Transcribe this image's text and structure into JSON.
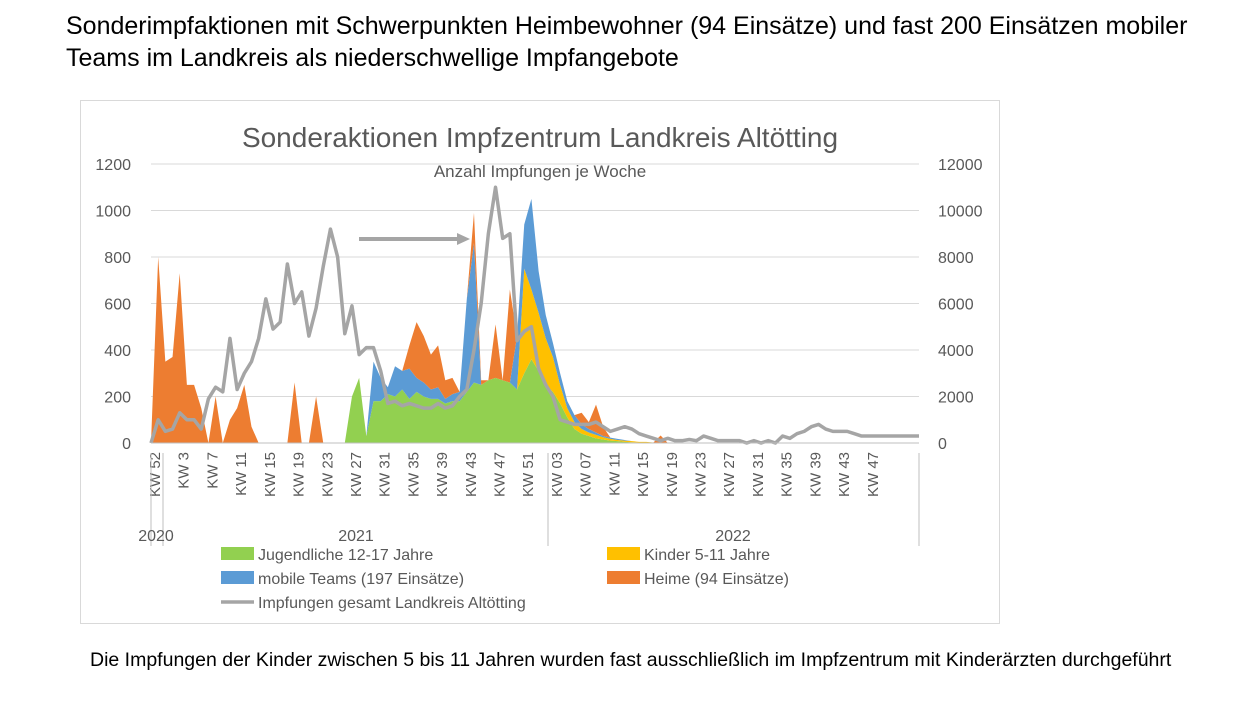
{
  "slide": {
    "title": "Sonderimpfaktionen mit Schwerpunkten Heimbewohner (94 Einsätze) und fast 200 Einsätzen mobiler Teams im Landkreis als niederschwellige Impfangebote",
    "footnote": "Die Impfungen der Kinder zwischen 5 bis 11 Jahren wurden fast ausschließlich im Impfzentrum mit Kinderärzten durchgeführt"
  },
  "chart_data": {
    "type": "area",
    "title": "Sonderaktionen Impfzentrum Landkreis Altötting",
    "subtitle": "Anzahl Impfungen je Woche",
    "stacked": true,
    "y_left_lim": [
      0,
      1200
    ],
    "y_left_ticks": [
      "0",
      "200",
      "400",
      "600",
      "800",
      "1000",
      "1200"
    ],
    "y_right_lim": [
      0,
      12000
    ],
    "y_right_ticks": [
      "0",
      "2000",
      "4000",
      "6000",
      "8000",
      "10000",
      "12000"
    ],
    "grid": "horizontal",
    "legend_position": "bottom",
    "week_tick_labels": [
      "KW 52",
      "KW 3",
      "KW 7",
      "KW 11",
      "KW 15",
      "KW 19",
      "KW 23",
      "KW 27",
      "KW 31",
      "KW 35",
      "KW 39",
      "KW 43",
      "KW 47",
      "KW 51",
      "KW 03",
      "KW 07",
      "KW 11",
      "KW 15",
      "KW 19",
      "KW 23",
      "KW 27",
      "KW 31",
      "KW 35",
      "KW 39",
      "KW 43",
      "KW 47"
    ],
    "year_labels": [
      "2020",
      "2021",
      "2022"
    ],
    "colors": {
      "Jugendliche": "#92d050",
      "Kinder": "#ffc000",
      "mobile": "#5b9bd5",
      "Heime": "#ed7d31",
      "gesamt": "#a5a5a5",
      "grid": "#d9d9d9",
      "axis_text": "#595959"
    },
    "series": [
      {
        "name": "Jugendliche 12-17 Jahre",
        "axis": "left",
        "values": [
          0,
          0,
          0,
          0,
          0,
          0,
          0,
          0,
          0,
          0,
          0,
          0,
          0,
          0,
          0,
          0,
          0,
          0,
          0,
          0,
          0,
          0,
          0,
          0,
          0,
          0,
          0,
          0,
          200,
          280,
          30,
          180,
          180,
          210,
          200,
          230,
          190,
          220,
          200,
          190,
          190,
          170,
          180,
          180,
          220,
          260,
          250,
          270,
          280,
          270,
          260,
          230,
          300,
          360,
          310,
          250,
          220,
          170,
          110,
          60,
          40,
          30,
          20,
          15,
          10,
          8,
          5,
          3,
          2,
          2,
          0,
          0,
          0,
          0,
          0,
          0,
          0,
          0,
          0,
          0,
          0,
          0,
          0,
          0,
          0,
          0,
          0,
          0,
          0,
          0,
          0,
          0,
          0,
          0,
          0,
          0,
          0,
          0,
          0,
          0,
          0,
          0,
          0,
          0,
          0,
          0,
          0,
          0
        ]
      },
      {
        "name": "Kinder 5-11 Jahre",
        "axis": "left",
        "values": [
          0,
          0,
          0,
          0,
          0,
          0,
          0,
          0,
          0,
          0,
          0,
          0,
          0,
          0,
          0,
          0,
          0,
          0,
          0,
          0,
          0,
          0,
          0,
          0,
          0,
          0,
          0,
          0,
          0,
          0,
          0,
          0,
          0,
          0,
          0,
          0,
          0,
          0,
          0,
          0,
          0,
          0,
          0,
          0,
          0,
          0,
          0,
          0,
          0,
          0,
          0,
          0,
          450,
          300,
          250,
          200,
          150,
          80,
          40,
          30,
          20,
          15,
          15,
          10,
          8,
          5,
          5,
          5,
          3,
          3,
          2,
          2,
          0,
          0,
          0,
          0,
          0,
          0,
          0,
          0,
          0,
          0,
          0,
          0,
          0,
          0,
          0,
          0,
          0,
          0,
          0,
          0,
          0,
          0,
          0,
          0,
          0,
          0,
          0,
          0,
          0,
          0,
          0,
          0,
          0,
          0,
          0,
          0,
          0
        ]
      },
      {
        "name": "mobile Teams (197 Einsätze)",
        "axis": "left",
        "values": [
          0,
          0,
          0,
          0,
          0,
          0,
          0,
          0,
          0,
          0,
          0,
          0,
          0,
          0,
          0,
          0,
          0,
          0,
          0,
          0,
          0,
          0,
          0,
          0,
          0,
          0,
          0,
          0,
          0,
          0,
          0,
          170,
          100,
          30,
          130,
          80,
          130,
          60,
          60,
          40,
          50,
          20,
          30,
          40,
          400,
          600,
          0,
          0,
          0,
          0,
          0,
          230,
          190,
          390,
          180,
          100,
          60,
          50,
          30,
          30,
          20,
          15,
          10,
          5,
          5,
          5,
          3,
          0,
          0,
          0,
          0,
          0,
          0,
          0,
          0,
          0,
          0,
          0,
          0,
          0,
          0,
          0,
          0,
          0,
          0,
          0,
          0,
          0,
          0,
          0,
          0,
          0,
          0,
          0,
          0,
          0,
          0,
          0,
          0,
          0,
          0,
          0,
          0,
          0,
          0,
          0,
          0,
          0
        ]
      },
      {
        "name": "Heime (94 Einsätze)",
        "axis": "left",
        "values": [
          0,
          800,
          350,
          370,
          730,
          250,
          250,
          150,
          0,
          200,
          0,
          100,
          150,
          250,
          70,
          0,
          0,
          0,
          0,
          0,
          260,
          0,
          0,
          200,
          0,
          0,
          0,
          0,
          0,
          0,
          0,
          0,
          0,
          0,
          0,
          0,
          100,
          240,
          200,
          150,
          180,
          80,
          70,
          0,
          0,
          130,
          20,
          0,
          230,
          0,
          400,
          0,
          0,
          0,
          0,
          0,
          0,
          0,
          0,
          0,
          50,
          30,
          120,
          40,
          0,
          0,
          0,
          0,
          0,
          0,
          0,
          30,
          0,
          0,
          0,
          0,
          0,
          0,
          0,
          0,
          0,
          0,
          0,
          0,
          0,
          0,
          0,
          0,
          0,
          0,
          0,
          0,
          0,
          0,
          0,
          0,
          0,
          0,
          0,
          0,
          0,
          0,
          0,
          0,
          0,
          0,
          0,
          0
        ]
      },
      {
        "name": "Impfungen gesamt Landkreis Altötting",
        "axis": "right",
        "type": "line",
        "values": [
          0,
          1000,
          500,
          600,
          1300,
          1000,
          1000,
          600,
          1900,
          2400,
          2200,
          4500,
          2300,
          3000,
          3500,
          4500,
          6200,
          4900,
          5200,
          7700,
          6000,
          6500,
          4600,
          5800,
          7600,
          9200,
          8000,
          4700,
          5900,
          3800,
          4100,
          4100,
          3100,
          1700,
          1800,
          1600,
          1700,
          1600,
          1500,
          1500,
          1700,
          1500,
          1600,
          2000,
          2300,
          4000,
          6000,
          9000,
          11000,
          8800,
          9000,
          4400,
          4800,
          5000,
          3200,
          2500,
          2000,
          1000,
          900,
          800,
          800,
          800,
          900,
          700,
          500,
          600,
          700,
          600,
          400,
          300,
          200,
          100,
          200,
          100,
          100,
          150,
          100,
          300,
          200,
          100,
          100,
          100,
          100,
          0,
          100,
          0,
          100,
          0,
          300,
          200,
          400,
          500,
          700,
          800,
          600,
          500,
          500,
          500,
          400,
          300,
          300,
          300,
          300,
          300,
          300,
          300,
          300,
          300
        ]
      }
    ]
  }
}
